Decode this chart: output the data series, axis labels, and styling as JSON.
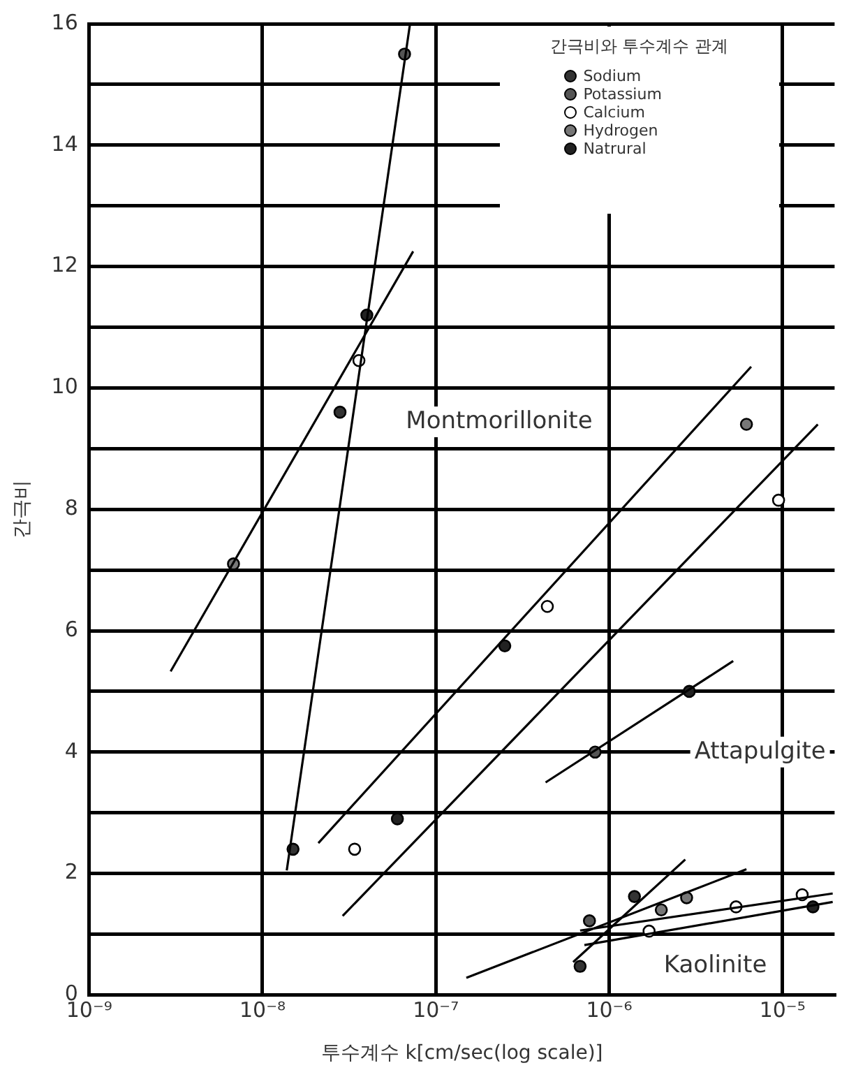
{
  "chart_data": {
    "type": "scatter",
    "xlabel": "투수계수 k[cm/sec(log scale)]",
    "ylabel": "간극비",
    "legend_title": "간극비와 투수계수 관계",
    "log": "x",
    "grid": true,
    "legend": "top right",
    "marker": "circle",
    "line_style": "solid",
    "xlim": [
      1e-09,
      2e-05
    ],
    "xticks": [
      {
        "value": 1e-09,
        "label": "10⁻⁹"
      },
      {
        "value": 1e-08,
        "label": "10⁻⁸"
      },
      {
        "value": 1e-07,
        "label": "10⁻⁷"
      },
      {
        "value": 1e-06,
        "label": "10⁻⁶"
      },
      {
        "value": 1e-05,
        "label": "10⁻⁵"
      }
    ],
    "ylim": [
      0,
      16
    ],
    "yticks": [
      0,
      {
        "value": 1,
        "label": null
      },
      2,
      {
        "value": 3,
        "label": null
      },
      4,
      {
        "value": 5,
        "label": null
      },
      6,
      {
        "value": 7,
        "label": null
      },
      8,
      {
        "value": 9,
        "label": null
      },
      10,
      {
        "value": 11,
        "label": null
      },
      12,
      {
        "value": 13,
        "label": null
      },
      14,
      {
        "value": 15,
        "label": null
      },
      16
    ],
    "annotations": [
      "Montmorillonite",
      "Attapulgite",
      "Kaolinite"
    ],
    "series": [
      {
        "type": "line",
        "marker": "none",
        "color": "#000000",
        "x": [
          1.38e-08,
          7.1e-08
        ],
        "values": [
          2.05,
          16
        ]
      },
      {
        "type": "line",
        "marker": "none",
        "color": "#000000",
        "x": [
          2.95e-09,
          7.4e-08
        ],
        "values": [
          5.33,
          12.25
        ]
      },
      {
        "type": "line",
        "marker": "none",
        "color": "#000000",
        "x": [
          2.1e-08,
          6.6e-06
        ],
        "values": [
          2.5,
          10.35
        ]
      },
      {
        "type": "line",
        "marker": "none",
        "color": "#000000",
        "x": [
          2.9e-08,
          1.6e-05
        ],
        "values": [
          1.3,
          9.4
        ]
      },
      {
        "type": "line",
        "marker": "none",
        "color": "#000000",
        "x": [
          4.3e-07,
          5.2e-06
        ],
        "values": [
          3.5,
          5.5
        ]
      },
      {
        "type": "line",
        "marker": "none",
        "color": "#000000",
        "x": [
          1.5e-07,
          6.2e-06
        ],
        "values": [
          0.28,
          2.07
        ]
      },
      {
        "type": "line",
        "marker": "none",
        "color": "#000000",
        "x": [
          6.2e-07,
          2.75e-06
        ],
        "values": [
          0.54,
          2.23
        ]
      },
      {
        "type": "line",
        "marker": "none",
        "color": "#000000",
        "x": [
          6.8e-07,
          1.95e-05
        ],
        "values": [
          1.06,
          1.67
        ]
      },
      {
        "type": "line",
        "marker": "none",
        "color": "#000000",
        "x": [
          7.2e-07,
          1.95e-05
        ],
        "values": [
          0.82,
          1.53
        ]
      },
      {
        "type": "scatter",
        "name": "Sodium",
        "color": "#333333",
        "x": [
          2.8e-08,
          1.5e-08,
          6.8e-07,
          1.4e-06
        ],
        "values": [
          9.6,
          2.4,
          0.47,
          1.62
        ]
      },
      {
        "type": "scatter",
        "name": "Potassium",
        "color": "#555555",
        "x": [
          6.6e-08,
          8.3e-07,
          7.7e-07
        ],
        "values": [
          15.5,
          4.0,
          1.22
        ]
      },
      {
        "type": "scatter",
        "name": "Calcium",
        "color": "#ffffff",
        "x": [
          3.6e-08,
          3.4e-08,
          4.4e-07,
          9.5e-06,
          1.7e-06,
          5.4e-06,
          1.3e-05
        ],
        "values": [
          10.45,
          2.4,
          6.4,
          8.15,
          1.05,
          1.45,
          1.65
        ]
      },
      {
        "type": "scatter",
        "name": "Hydrogen",
        "color": "#777777",
        "x": [
          6.8e-09,
          6.2e-06,
          2e-06,
          2.8e-06
        ],
        "values": [
          7.1,
          9.4,
          1.4,
          1.6
        ]
      },
      {
        "type": "scatter",
        "name": "Natrural",
        "color": "#222222",
        "x": [
          4e-08,
          6e-08,
          2.5e-07,
          2.9e-06,
          1.5e-05
        ],
        "values": [
          11.2,
          2.9,
          5.75,
          5.0,
          1.45
        ]
      }
    ]
  }
}
